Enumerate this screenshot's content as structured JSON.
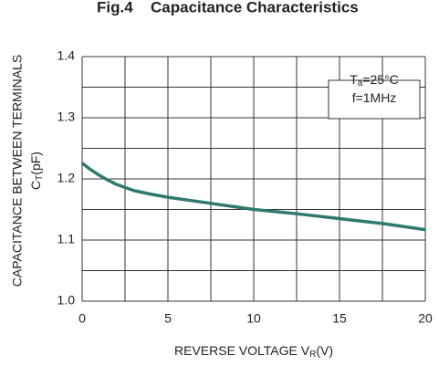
{
  "chart_data": {
    "type": "line",
    "fig_label": "Fig.4",
    "title": "Capacitance Characteristics",
    "ylabel": "CAPACITANCE BETWEEN TERMINALS",
    "yunit": {
      "main": "C",
      "sub": "T",
      "after": "(pF)"
    },
    "xlabel": {
      "main": "REVERSE VOLTAGE V",
      "sub": "R",
      "after": "(V)"
    },
    "conditions": [
      {
        "main": "T",
        "sub": "a",
        "after": "=25°C"
      },
      {
        "main": "f=1MHz"
      }
    ],
    "x": [
      0,
      0.5,
      1,
      1.5,
      2,
      3,
      4,
      5,
      7.5,
      10,
      12.5,
      15,
      17.5,
      20
    ],
    "series": [
      {
        "color": "#2f7a6f",
        "values": [
          1.226,
          1.215,
          1.206,
          1.198,
          1.191,
          1.181,
          1.175,
          1.17,
          1.16,
          1.15,
          1.143,
          1.135,
          1.127,
          1.117
        ]
      }
    ],
    "xlim": [
      0,
      20
    ],
    "ylim": [
      1.0,
      1.4
    ],
    "xticks": [
      0,
      5,
      10,
      15,
      20
    ],
    "yticks": [
      {
        "value": 1,
        "label": "1.0"
      },
      1.1,
      1.2,
      1.3,
      1.4
    ],
    "xminor": [
      2.5,
      7.5,
      12.5,
      17.5
    ],
    "yminor": [
      1.05,
      1.15,
      1.25,
      1.35
    ],
    "grid": true
  }
}
